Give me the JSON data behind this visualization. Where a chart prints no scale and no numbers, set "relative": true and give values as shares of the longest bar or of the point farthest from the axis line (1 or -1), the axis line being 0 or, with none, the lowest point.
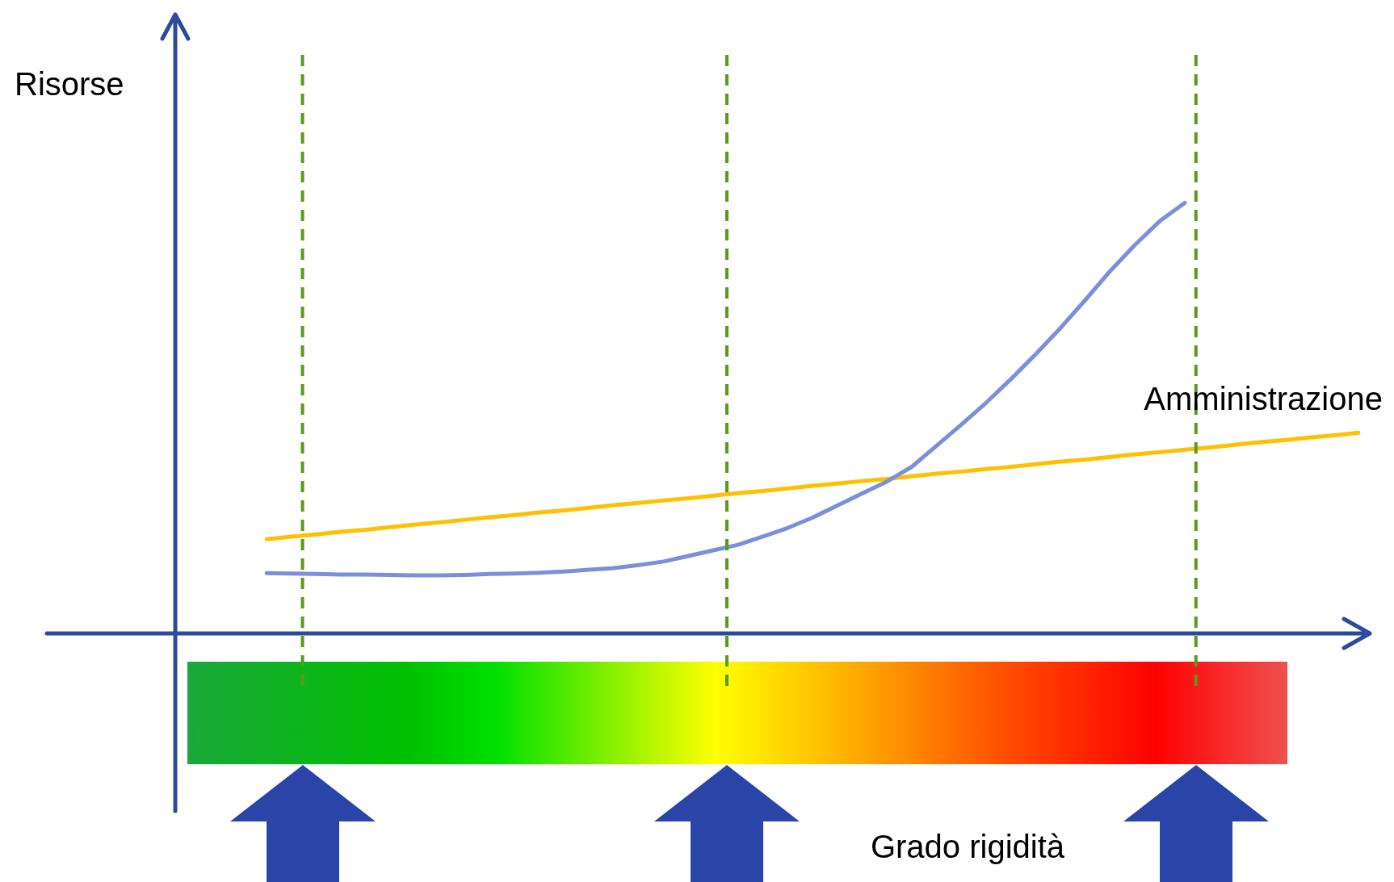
{
  "chart_data": {
    "type": "line",
    "relative": true,
    "annotations": [
      "Risorse",
      "Grado rigidità"
    ],
    "legend": false,
    "marker": "none",
    "line_style": "solid",
    "categories": [
      null,
      null,
      null,
      null,
      null,
      null,
      null,
      null,
      null,
      null,
      null,
      null,
      null,
      null,
      null,
      null,
      null,
      null,
      null,
      null,
      null,
      null,
      null,
      null,
      null,
      null,
      null,
      null,
      null,
      null,
      null,
      null,
      null,
      null,
      null,
      null,
      null,
      null,
      null,
      null,
      null,
      null,
      null,
      null,
      null
    ],
    "series": [
      {
        "color": "#7b8fdb",
        "values": [
          0.14,
          0.139,
          0.138,
          0.137,
          0.137,
          0.136,
          0.135,
          0.135,
          0.136,
          0.138,
          0.139,
          0.141,
          0.144,
          0.148,
          0.152,
          0.159,
          0.167,
          0.18,
          0.193,
          0.206,
          0.225,
          0.245,
          0.269,
          0.297,
          0.325,
          0.353,
          0.387,
          0.436,
          0.485,
          0.536,
          0.591,
          0.649,
          0.71,
          0.775,
          0.842,
          0.903,
          0.958,
          1,
          null,
          null,
          null,
          null,
          null,
          null,
          null
        ]
      },
      {
        "name": "Amministrazione",
        "color": "#ffc000",
        "values": [
          0.219,
          0.225,
          0.23,
          0.236,
          0.241,
          0.247,
          0.253,
          0.258,
          0.264,
          0.27,
          0.275,
          0.281,
          0.286,
          0.292,
          0.298,
          0.303,
          0.309,
          0.314,
          0.32,
          0.326,
          0.331,
          0.337,
          0.343,
          0.348,
          0.354,
          0.359,
          0.365,
          0.371,
          0.376,
          0.382,
          0.387,
          0.393,
          0.399,
          0.404,
          0.41,
          0.416,
          0.421,
          0.427,
          0.432,
          0.438,
          0.444,
          0.449,
          0.455,
          0.46,
          0.466
        ]
      }
    ]
  }
}
